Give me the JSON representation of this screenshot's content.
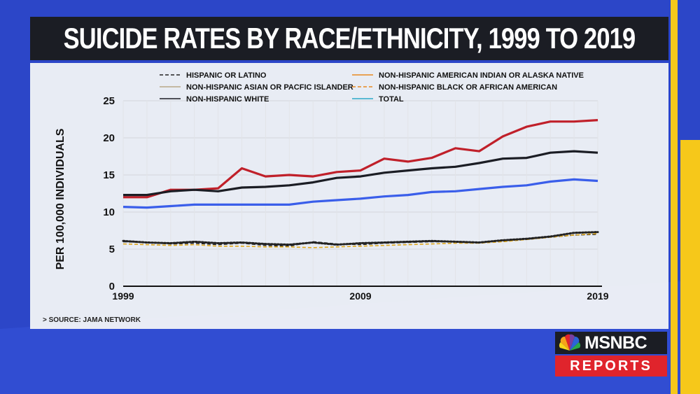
{
  "header": {
    "title": "SUICIDE RATES BY RACE/ETHNICITY, 1999 TO 2019"
  },
  "source_note": "> SOURCE: JAMA NETWORK",
  "logo": {
    "brand": "MSNBC",
    "sub": "REPORTS"
  },
  "colors": {
    "background": "#2c46c8",
    "accent_yellow": "#f6c81a",
    "title_bar": "#1b1d24",
    "panel": "#f0f2f6"
  },
  "chart_data": {
    "type": "line",
    "title": "SUICIDE RATES BY RACE/ETHNICITY, 1999 TO 2019",
    "ylabel": "PER 100,000 INDIVIDUALS",
    "xlabel": "",
    "ylim": [
      0,
      25
    ],
    "yticks": [
      0,
      5,
      10,
      15,
      20,
      25
    ],
    "xlim": [
      1999,
      2019
    ],
    "xticks": [
      1999,
      2009,
      2019
    ],
    "grid": true,
    "legend_position": "top",
    "x": [
      1999,
      2000,
      2001,
      2002,
      2003,
      2004,
      2005,
      2006,
      2007,
      2008,
      2009,
      2010,
      2011,
      2012,
      2013,
      2014,
      2015,
      2016,
      2017,
      2018,
      2019
    ],
    "series": [
      {
        "name": "HISPANIC OR LATINO",
        "color": "#222222",
        "dash": "dashed",
        "values": [
          6.0,
          5.9,
          5.7,
          5.8,
          5.6,
          5.8,
          5.5,
          5.4,
          6.0,
          5.7,
          5.6,
          5.8,
          5.9,
          6.0,
          6.0,
          5.9,
          6.1,
          6.3,
          6.6,
          6.9,
          7.0
        ]
      },
      {
        "name": "NON-HISPANIC AMERICAN INDIAN OR ALASKA NATIVE",
        "color": "#c0202a",
        "dash": "solid",
        "values": [
          12.0,
          12.0,
          13.0,
          13.0,
          13.2,
          15.9,
          14.8,
          15.0,
          14.8,
          15.4,
          15.6,
          17.2,
          16.8,
          17.3,
          18.6,
          18.2,
          20.2,
          21.5,
          22.2,
          22.2,
          22.4
        ]
      },
      {
        "name": "NON-HISPANIC ASIAN OR PACFIC ISLANDER",
        "color": "#3a5eea",
        "dash": "solid",
        "values": [
          10.7,
          10.6,
          10.8,
          11.0,
          11.0,
          11.0,
          11.0,
          11.0,
          11.4,
          11.6,
          11.8,
          12.1,
          12.3,
          12.7,
          12.8,
          13.1,
          13.4,
          13.6,
          14.1,
          14.4,
          14.2
        ]
      },
      {
        "name": "NON-HISPANIC BLACK OR AFRICAN AMERICAN",
        "color": "#e0a81c",
        "dash": "dashed",
        "values": [
          5.7,
          5.6,
          5.5,
          5.6,
          5.4,
          5.4,
          5.3,
          5.3,
          5.2,
          5.3,
          5.4,
          5.5,
          5.6,
          5.7,
          5.8,
          5.8,
          6.0,
          6.3,
          6.6,
          6.9,
          7.1
        ]
      },
      {
        "name": "NON-HISPANIC WHITE",
        "color": "#1b1d24",
        "dash": "solid",
        "values": [
          12.3,
          12.3,
          12.8,
          13.0,
          12.8,
          13.3,
          13.4,
          13.6,
          14.0,
          14.6,
          14.8,
          15.3,
          15.6,
          15.9,
          16.1,
          16.6,
          17.2,
          17.3,
          18.0,
          18.2,
          18.0
        ]
      },
      {
        "name": "TOTAL",
        "color": "#222222",
        "dash": "dotted",
        "values": [
          6.1,
          5.9,
          5.8,
          6.0,
          5.8,
          5.9,
          5.7,
          5.6,
          5.9,
          5.6,
          5.8,
          5.9,
          6.0,
          6.1,
          6.0,
          5.9,
          6.2,
          6.4,
          6.7,
          7.2,
          7.3
        ]
      }
    ],
    "legend": [
      {
        "label": "HISPANIC OR LATINO",
        "color": "#222222",
        "dash": "dashed"
      },
      {
        "label": "NON-HISPANIC AMERICAN INDIAN OR ALASKA NATIVE",
        "color": "#e88a20",
        "dash": "solid"
      },
      {
        "label": "NON-HISPANIC ASIAN OR PACFIC ISLANDER",
        "color": "#b8a888",
        "dash": "solid"
      },
      {
        "label": "NON-HISPANIC BLACK OR AFRICAN AMERICAN",
        "color": "#e88a20",
        "dash": "dashed"
      },
      {
        "label": "NON-HISPANIC WHITE",
        "color": "#1b1d24",
        "dash": "solid"
      },
      {
        "label": "TOTAL",
        "color": "#2aa8c8",
        "dash": "solid"
      }
    ]
  }
}
